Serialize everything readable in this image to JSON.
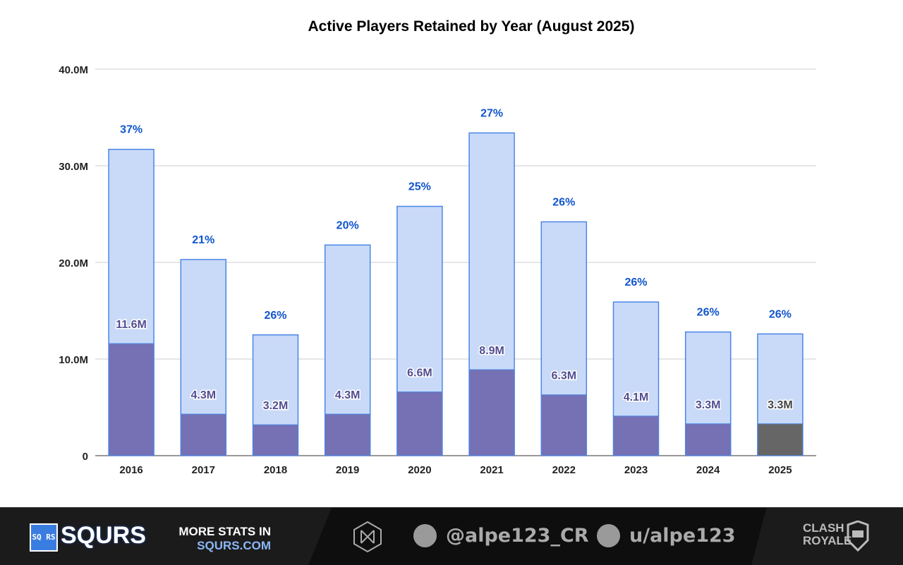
{
  "chart_data": {
    "type": "bar",
    "title": "Active Players Retained by Year (August 2025)",
    "categories": [
      "2016",
      "2017",
      "2018",
      "2019",
      "2020",
      "2021",
      "2022",
      "2023",
      "2024",
      "2025"
    ],
    "series": [
      {
        "values": [
          31.7,
          20.3,
          12.5,
          21.8,
          25.8,
          33.4,
          24.2,
          15.9,
          12.8,
          12.6
        ]
      },
      {
        "values": [
          11.6,
          4.3,
          3.2,
          4.3,
          6.6,
          8.9,
          6.3,
          4.1,
          3.3,
          3.3
        ]
      }
    ],
    "retained_labels": [
      "11.6M",
      "4.3M",
      "3.2M",
      "4.3M",
      "6.6M",
      "8.9M",
      "6.3M",
      "4.1M",
      "3.3M",
      "3.3M"
    ],
    "percent_labels": [
      "37%",
      "21%",
      "26%",
      "20%",
      "25%",
      "27%",
      "26%",
      "26%",
      "26%",
      "26%"
    ],
    "yticks": [
      0,
      10,
      20,
      30,
      40
    ],
    "ytick_labels": [
      "0",
      "10.0M",
      "20.0M",
      "30.0M",
      "40.0M"
    ],
    "ylim": [
      0,
      40
    ],
    "unit": "M",
    "grid": true,
    "colors": {
      "total_fill": "#c9daf8",
      "total_stroke": "#4a86e8",
      "retained": "#7571b4",
      "retained_current": "#666666",
      "percent_text": "#1155cc"
    }
  },
  "footer": {
    "logo_box": "SQ RS",
    "brand": "SQURS",
    "more_line1": "MORE STATS IN",
    "more_line2": "SQURS.COM",
    "twitter": "@alpe123_CR",
    "reddit": "u/alpe123",
    "game_logo": "CLASH ROYALE"
  }
}
